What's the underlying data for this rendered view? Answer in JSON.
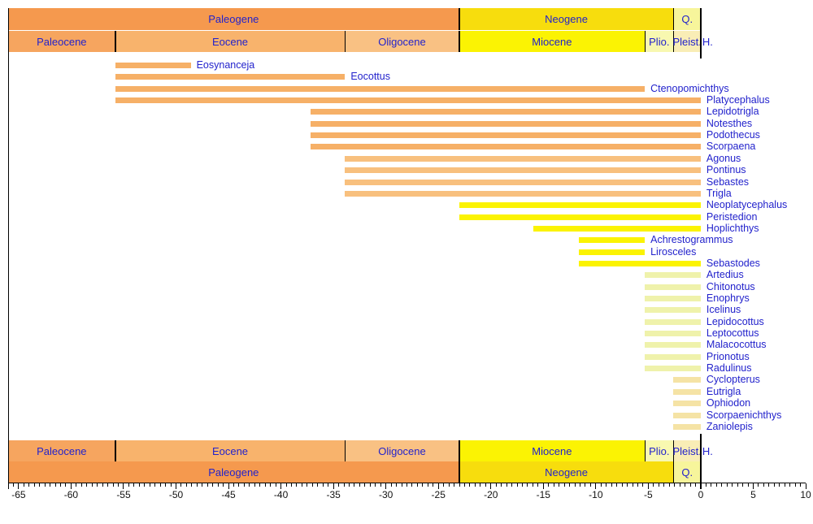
{
  "chart_data": {
    "type": "bar",
    "subtype": "stratigraphic-taxon-range-chart",
    "title": "",
    "xlabel": "",
    "ylabel": "",
    "x_axis": {
      "min": -66,
      "max": 10,
      "major_ticks": [
        -65,
        -60,
        -55,
        -50,
        -45,
        -40,
        -35,
        -30,
        -25,
        -20,
        -15,
        -10,
        -5,
        0,
        5,
        10
      ],
      "minor_tick_step": 0.5,
      "tick_label_color": "#111111"
    },
    "present_line_x": 0,
    "label_color": "#2222CC",
    "line_color": "#000000",
    "eras": [
      {
        "label": "Paleogene",
        "start": -66,
        "end": -23.03,
        "color": "#F5994E"
      },
      {
        "label": "Neogene",
        "start": -23.03,
        "end": -2.59,
        "color": "#F7DD0D"
      },
      {
        "label": "Q.",
        "start": -2.59,
        "end": 0,
        "color": "#F7F59B"
      }
    ],
    "epochs": [
      {
        "label": "Paleocene",
        "start": -66,
        "end": -55.8,
        "color": "#F6A55F"
      },
      {
        "label": "Eocene",
        "start": -55.8,
        "end": -33.9,
        "color": "#F8B36C"
      },
      {
        "label": "Oligocene",
        "start": -33.9,
        "end": -23.03,
        "color": "#F9C183"
      },
      {
        "label": "Miocene",
        "start": -23.03,
        "end": -5.33,
        "color": "#FBF303"
      },
      {
        "label": "Plio.",
        "start": -5.33,
        "end": -2.59,
        "color": "#F8F8B0"
      },
      {
        "label": "Pleist.",
        "start": -2.59,
        "end": -0.01,
        "color": "#F9EDB6"
      },
      {
        "label": "H.",
        "start": -0.01,
        "end": 0,
        "color": "#FDF4DC"
      }
    ],
    "group_colors": {
      "Eocene": "#F6B067",
      "Oligocene": "#F8C07E",
      "Miocene": "#FBF303",
      "Pliocene": "#EFF2AB",
      "Pleistocene": "#F5E3A5"
    },
    "taxa": [
      {
        "name": "Eosynanceja",
        "start": -55.8,
        "end": -48.6,
        "group": "Eocene"
      },
      {
        "name": "Eocottus",
        "start": -55.8,
        "end": -33.9,
        "group": "Eocene"
      },
      {
        "name": "Ctenopomichthys",
        "start": -55.8,
        "end": -5.33,
        "group": "Eocene"
      },
      {
        "name": "Platycephalus",
        "start": -55.8,
        "end": 0,
        "group": "Eocene"
      },
      {
        "name": "Lepidotrigla",
        "start": -37.2,
        "end": 0,
        "group": "Eocene"
      },
      {
        "name": "Notesthes",
        "start": -37.2,
        "end": 0,
        "group": "Eocene"
      },
      {
        "name": "Podothecus",
        "start": -37.2,
        "end": 0,
        "group": "Eocene"
      },
      {
        "name": "Scorpaena",
        "start": -37.2,
        "end": 0,
        "group": "Eocene"
      },
      {
        "name": "Agonus",
        "start": -33.9,
        "end": 0,
        "group": "Oligocene"
      },
      {
        "name": "Pontinus",
        "start": -33.9,
        "end": 0,
        "group": "Oligocene"
      },
      {
        "name": "Sebastes",
        "start": -33.9,
        "end": 0,
        "group": "Oligocene"
      },
      {
        "name": "Trigla",
        "start": -33.9,
        "end": 0,
        "group": "Oligocene"
      },
      {
        "name": "Neoplatycephalus",
        "start": -23.03,
        "end": 0,
        "group": "Miocene"
      },
      {
        "name": "Peristedion",
        "start": -23.03,
        "end": 0,
        "group": "Miocene"
      },
      {
        "name": "Hoplichthys",
        "start": -15.97,
        "end": 0,
        "group": "Miocene"
      },
      {
        "name": "Achrestogrammus",
        "start": -11.61,
        "end": -5.33,
        "group": "Miocene"
      },
      {
        "name": "Lirosceles",
        "start": -11.61,
        "end": -5.33,
        "group": "Miocene"
      },
      {
        "name": "Sebastodes",
        "start": -11.61,
        "end": 0,
        "group": "Miocene"
      },
      {
        "name": "Artedius",
        "start": -5.33,
        "end": 0,
        "group": "Pliocene"
      },
      {
        "name": "Chitonotus",
        "start": -5.33,
        "end": 0,
        "group": "Pliocene"
      },
      {
        "name": "Enophrys",
        "start": -5.33,
        "end": 0,
        "group": "Pliocene"
      },
      {
        "name": "Icelinus",
        "start": -5.33,
        "end": 0,
        "group": "Pliocene"
      },
      {
        "name": "Lepidocottus",
        "start": -5.33,
        "end": 0,
        "group": "Pliocene"
      },
      {
        "name": "Leptocottus",
        "start": -5.33,
        "end": 0,
        "group": "Pliocene"
      },
      {
        "name": "Malacocottus",
        "start": -5.33,
        "end": 0,
        "group": "Pliocene"
      },
      {
        "name": "Prionotus",
        "start": -5.33,
        "end": 0,
        "group": "Pliocene"
      },
      {
        "name": "Radulinus",
        "start": -5.33,
        "end": 0,
        "group": "Pliocene"
      },
      {
        "name": "Cyclopterus",
        "start": -2.59,
        "end": 0,
        "group": "Pleistocene"
      },
      {
        "name": "Eutrigla",
        "start": -2.59,
        "end": 0,
        "group": "Pleistocene"
      },
      {
        "name": "Ophiodon",
        "start": -2.59,
        "end": 0,
        "group": "Pleistocene"
      },
      {
        "name": "Scorpaenichthys",
        "start": -2.59,
        "end": 0,
        "group": "Pleistocene"
      },
      {
        "name": "Zaniolepis",
        "start": -2.59,
        "end": 0,
        "group": "Pleistocene"
      }
    ]
  }
}
